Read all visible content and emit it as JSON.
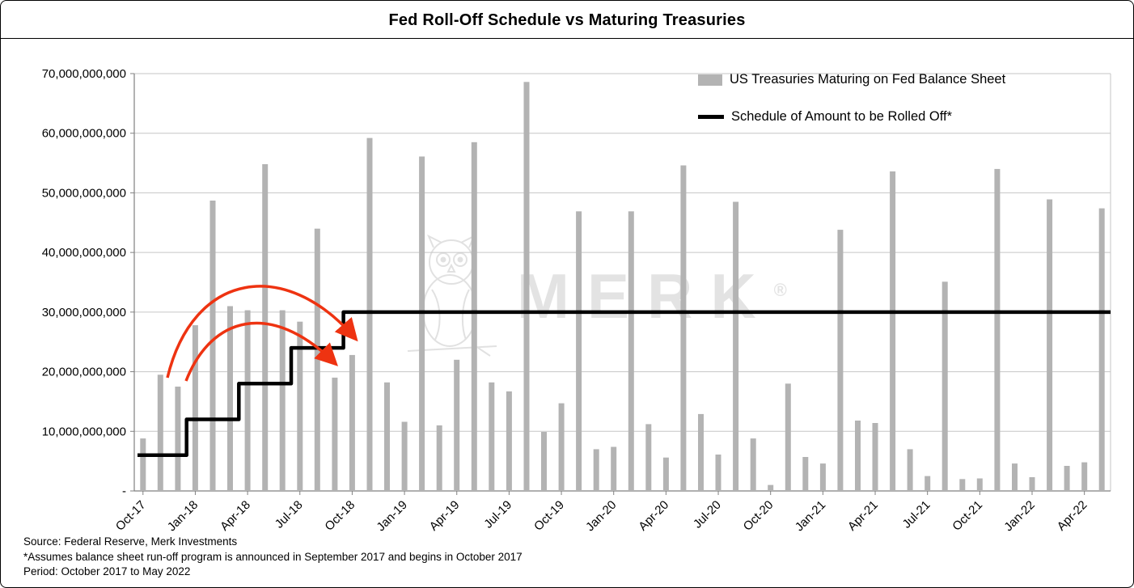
{
  "title": "Fed Roll-Off Schedule vs Maturing Treasuries",
  "legend": {
    "bars": "US Treasuries Maturing on Fed Balance Sheet",
    "line": "Schedule of Amount to be Rolled Off*"
  },
  "watermark": {
    "text": "MERK",
    "reg": "®"
  },
  "footer": {
    "source": "Source: Federal Reserve, Merk Investments",
    "note": "*Assumes balance sheet run-off program is announced in September 2017 and begins in October 2017",
    "period": "Period: October 2017 to May 2022"
  },
  "colors": {
    "bar": "#b3b3b3",
    "line": "#000000",
    "arrow": "#ee3311",
    "grid": "#c6c6c6",
    "axis": "#808080"
  },
  "chart_data": {
    "type": "bar",
    "title": "Fed Roll-Off Schedule vs Maturing Treasuries",
    "x": [
      "Oct-17",
      "Nov-17",
      "Dec-17",
      "Jan-18",
      "Feb-18",
      "Mar-18",
      "Apr-18",
      "May-18",
      "Jun-18",
      "Jul-18",
      "Aug-18",
      "Sep-18",
      "Oct-18",
      "Nov-18",
      "Dec-18",
      "Jan-19",
      "Feb-19",
      "Mar-19",
      "Apr-19",
      "May-19",
      "Jun-19",
      "Jul-19",
      "Aug-19",
      "Sep-19",
      "Oct-19",
      "Nov-19",
      "Dec-19",
      "Jan-20",
      "Feb-20",
      "Mar-20",
      "Apr-20",
      "May-20",
      "Jun-20",
      "Jul-20",
      "Aug-20",
      "Sep-20",
      "Oct-20",
      "Nov-20",
      "Dec-20",
      "Jan-21",
      "Feb-21",
      "Mar-21",
      "Apr-21",
      "May-21",
      "Jun-21",
      "Jul-21",
      "Aug-21",
      "Sep-21",
      "Oct-21",
      "Nov-21",
      "Dec-21",
      "Jan-22",
      "Feb-22",
      "Mar-22",
      "Apr-22",
      "May-22"
    ],
    "x_labeled_every": 3,
    "series": [
      {
        "name": "US Treasuries Maturing on Fed Balance Sheet",
        "type": "bar",
        "values": [
          8800000000,
          19500000000,
          17500000000,
          27800000000,
          48700000000,
          31000000000,
          30300000000,
          54800000000,
          30300000000,
          28400000000,
          44000000000,
          19000000000,
          22800000000,
          59200000000,
          18200000000,
          11600000000,
          56100000000,
          11000000000,
          22000000000,
          58500000000,
          18200000000,
          16700000000,
          68600000000,
          9900000000,
          14700000000,
          46900000000,
          7000000000,
          7400000000,
          46900000000,
          11200000000,
          5600000000,
          54600000000,
          12900000000,
          6100000000,
          48500000000,
          8800000000,
          1000000000,
          18000000000,
          5700000000,
          4600000000,
          43800000000,
          11800000000,
          11400000000,
          53600000000,
          7000000000,
          2500000000,
          35100000000,
          2000000000,
          2100000000,
          54000000000,
          4600000000,
          2300000000,
          48900000000,
          4200000000,
          4800000000,
          47400000000
        ]
      },
      {
        "name": "Schedule of Amount to be Rolled Off*",
        "type": "step-line",
        "values": [
          6000000000,
          6000000000,
          6000000000,
          12000000000,
          12000000000,
          12000000000,
          18000000000,
          18000000000,
          18000000000,
          24000000000,
          24000000000,
          24000000000,
          30000000000,
          30000000000,
          30000000000,
          30000000000,
          30000000000,
          30000000000,
          30000000000,
          30000000000,
          30000000000,
          30000000000,
          30000000000,
          30000000000,
          30000000000,
          30000000000,
          30000000000,
          30000000000,
          30000000000,
          30000000000,
          30000000000,
          30000000000,
          30000000000,
          30000000000,
          30000000000,
          30000000000,
          30000000000,
          30000000000,
          30000000000,
          30000000000,
          30000000000,
          30000000000,
          30000000000,
          30000000000,
          30000000000,
          30000000000,
          30000000000,
          30000000000,
          30000000000,
          30000000000,
          30000000000,
          30000000000,
          30000000000,
          30000000000,
          30000000000,
          30000000000
        ]
      }
    ],
    "ylim": [
      0,
      70000000000
    ],
    "y_tick_step": 10000000000,
    "y_tick_labels": [
      "-",
      "10,000,000,000",
      "20,000,000,000",
      "30,000,000,000",
      "40,000,000,000",
      "50,000,000,000",
      "60,000,000,000",
      "70,000,000,000"
    ],
    "grid": "horizontal",
    "legend_position": "top-right-inside",
    "annotations": [
      {
        "type": "arrow",
        "color": "#ee3311",
        "desc": "curved red arrow from Oct-17 start of schedule arcing to the 30B cap step at Oct-18"
      },
      {
        "type": "arrow",
        "color": "#ee3311",
        "desc": "curved red arrow from Nov-17 arcing to the 24B cap level before Oct-18"
      }
    ]
  }
}
